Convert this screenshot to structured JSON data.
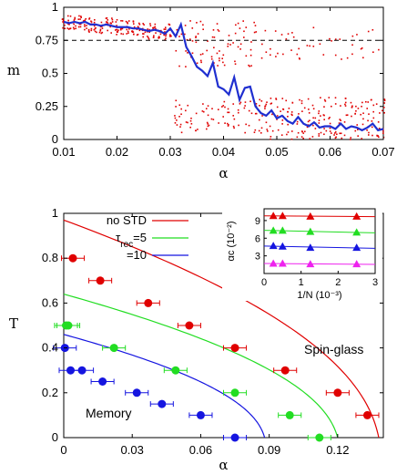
{
  "chart_data": [
    {
      "type": "scatter",
      "panel": "top",
      "xlabel": "α",
      "ylabel": "m",
      "xlim": [
        0.01,
        0.07
      ],
      "ylim": [
        0,
        1
      ],
      "xticks": [
        "0.01",
        "0.02",
        "0.03",
        "0.04",
        "0.05",
        "0.06",
        "0.07"
      ],
      "yticks": [
        "0",
        "0.25",
        "0.5",
        "0.75",
        "1"
      ],
      "reference_line": {
        "y": 0.75,
        "style": "dashed"
      },
      "mean_curve": {
        "x": [
          0.01,
          0.011,
          0.012,
          0.013,
          0.014,
          0.015,
          0.016,
          0.017,
          0.018,
          0.019,
          0.02,
          0.021,
          0.022,
          0.023,
          0.024,
          0.025,
          0.026,
          0.027,
          0.028,
          0.029,
          0.03,
          0.031,
          0.032,
          0.033,
          0.034,
          0.035,
          0.036,
          0.037,
          0.038,
          0.039,
          0.04,
          0.041,
          0.042,
          0.043,
          0.044,
          0.045,
          0.046,
          0.047,
          0.048,
          0.049,
          0.05,
          0.051,
          0.052,
          0.053,
          0.054,
          0.055,
          0.056,
          0.057,
          0.058,
          0.059,
          0.06,
          0.061,
          0.062,
          0.063,
          0.064,
          0.065,
          0.066,
          0.067,
          0.068,
          0.069,
          0.07
        ],
        "y": [
          0.89,
          0.88,
          0.89,
          0.88,
          0.89,
          0.87,
          0.87,
          0.86,
          0.87,
          0.86,
          0.85,
          0.85,
          0.85,
          0.84,
          0.84,
          0.83,
          0.82,
          0.83,
          0.82,
          0.8,
          0.84,
          0.78,
          0.87,
          0.7,
          0.63,
          0.55,
          0.52,
          0.48,
          0.58,
          0.4,
          0.38,
          0.34,
          0.47,
          0.3,
          0.39,
          0.4,
          0.25,
          0.2,
          0.18,
          0.22,
          0.16,
          0.18,
          0.14,
          0.12,
          0.17,
          0.12,
          0.1,
          0.13,
          0.09,
          0.1,
          0.1,
          0.08,
          0.12,
          0.08,
          0.1,
          0.09,
          0.07,
          0.09,
          0.12,
          0.07,
          0.08
        ],
        "color": "#1f2fd0"
      },
      "scatter_color": "#e00000"
    },
    {
      "type": "scatter",
      "panel": "bottom",
      "xlabel": "α",
      "ylabel": "T",
      "xlim": [
        0,
        0.14
      ],
      "ylim": [
        0,
        1
      ],
      "xticks": [
        "0",
        "0.03",
        "0.06",
        "0.09",
        "0.12"
      ],
      "yticks": [
        "0",
        "0.2",
        "0.4",
        "0.6",
        "0.8",
        "1"
      ],
      "series": [
        {
          "name": "no STD",
          "color": "#e00000",
          "x": [
            0.004,
            0.016,
            0.037,
            0.055,
            0.075,
            0.097,
            0.12,
            0.133
          ],
          "y": [
            0.8,
            0.7,
            0.6,
            0.5,
            0.4,
            0.3,
            0.2,
            0.1
          ],
          "xerr": 0.005,
          "curve_alpha_c0": 0.138
        },
        {
          "name": "τrec=5",
          "color": "#22dd22",
          "x": [
            0.001,
            0.002,
            0.022,
            0.049,
            0.075,
            0.099,
            0.112
          ],
          "y": [
            0.5,
            0.5,
            0.4,
            0.3,
            0.2,
            0.1,
            0.0
          ],
          "xerr": 0.005,
          "curve_alpha_c0": 0.12
        },
        {
          "name": "=10",
          "color": "#1515e0",
          "x": [
            0.0005,
            0.003,
            0.008,
            0.017,
            0.032,
            0.043,
            0.06,
            0.075
          ],
          "y": [
            0.4,
            0.3,
            0.3,
            0.25,
            0.2,
            0.15,
            0.1,
            0.0
          ],
          "xerr": 0.005,
          "curve_alpha_c0": 0.088
        }
      ],
      "annotations": [
        "Spin-glass",
        "Memory"
      ],
      "inset": {
        "xlabel": "1/N (10⁻³)",
        "ylabel": "αc (10⁻²)",
        "xlim": [
          0,
          3
        ],
        "ylim": [
          0,
          11
        ],
        "xticks": [
          "0",
          "1",
          "2",
          "3"
        ],
        "yticks": [
          "3",
          "6",
          "9"
        ],
        "series": [
          {
            "color": "#e00000",
            "x": [
              0.25,
              0.5,
              1.25,
              2.5
            ],
            "y": [
              9.8,
              9.8,
              9.7,
              9.7
            ]
          },
          {
            "color": "#22dd22",
            "x": [
              0.25,
              0.5,
              1.25,
              2.5
            ],
            "y": [
              7.3,
              7.3,
              7.1,
              7.0
            ]
          },
          {
            "color": "#1515e0",
            "x": [
              0.25,
              0.5,
              1.25,
              2.5
            ],
            "y": [
              4.7,
              4.6,
              4.4,
              4.4
            ]
          },
          {
            "color": "#ee22ee",
            "x": [
              0.25,
              0.5,
              1.25,
              2.5
            ],
            "y": [
              1.7,
              1.7,
              1.6,
              1.6
            ]
          }
        ]
      }
    }
  ]
}
